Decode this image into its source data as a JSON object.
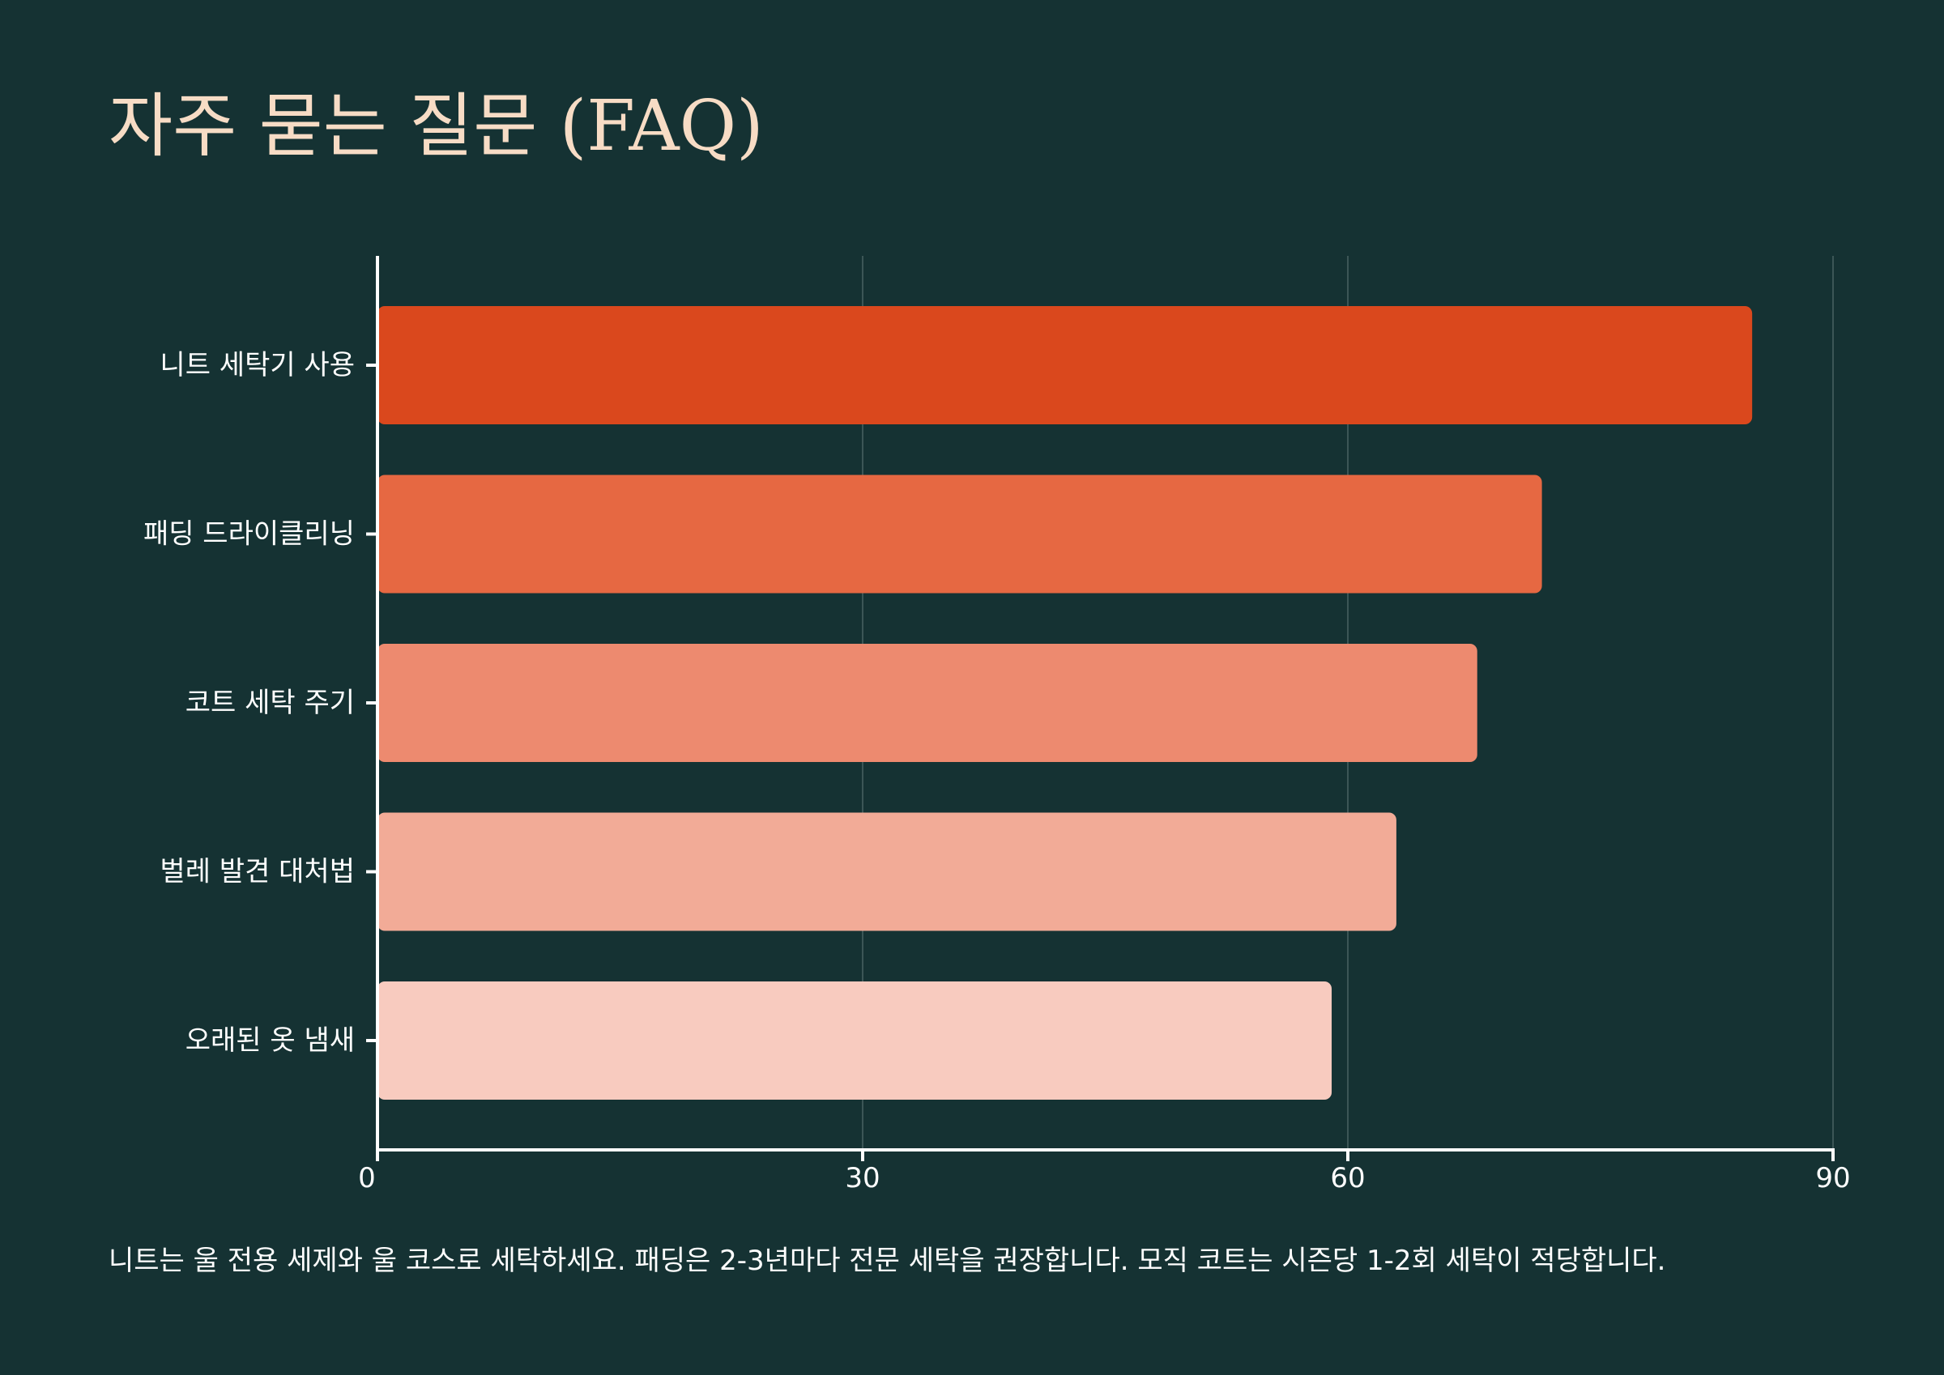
{
  "title": "자주 묻는 질문 (FAQ)",
  "footnote": "니트는 울 전용 세제와 울 코스로 세탁하세요. 패딩은 2-3년마다 전문 세탁을 권장합니다. 모직 코트는 시즌당 1-2회 세탁이 적당합니다.",
  "colors": {
    "background": "#153233",
    "title": "#f7dcc5",
    "axis": "#ffffff",
    "grid": "#3c5656"
  },
  "chart_data": {
    "type": "bar",
    "orientation": "horizontal",
    "categories": [
      "니트 세탁기 사용",
      "패딩 드라이클리닝",
      "코트 세탁 주기",
      "벌레 발견 대처법",
      "오래된 옷 냄새"
    ],
    "values": [
      85,
      72,
      68,
      63,
      59
    ],
    "bar_colors": [
      "#da481d",
      "#e66842",
      "#ed8a6f",
      "#f2ab97",
      "#f8cbbf"
    ],
    "xlim": [
      0,
      90
    ],
    "xticks": [
      "0",
      "30",
      "60",
      "90"
    ],
    "xtick_values": [
      0,
      30,
      60,
      90
    ],
    "xlabel": "",
    "ylabel": "",
    "grid": "vertical",
    "legend": "none"
  }
}
